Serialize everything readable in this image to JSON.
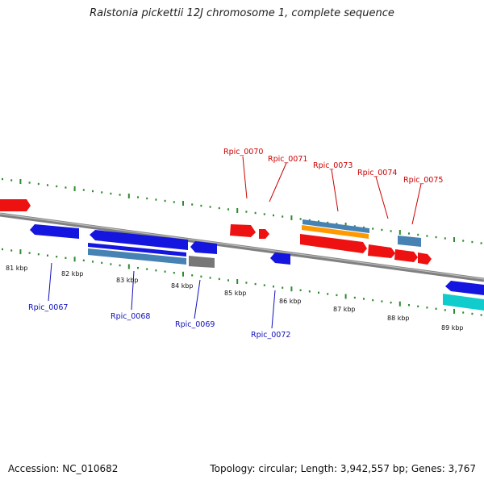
{
  "title": "Ralstonia pickettii 12J chromosome 1, complete sequence",
  "accession": "Accession: NC_010682",
  "summary": "Topology: circular; Length: 3,942,557 bp; Genes: 3,767",
  "colors": {
    "tick": "#2e8b2e",
    "backbone": "#808080",
    "forward_label": "#cc0000",
    "reverse_label": "#1010bb",
    "gene_red": "#ee1111",
    "gene_blue": "#1515e0",
    "gene_steel": "#4682b4",
    "gene_orange": "#ff9900",
    "gene_gray": "#777777",
    "gene_cyan": "#11cccc"
  },
  "kbp_labels": [
    "81 kbp",
    "82 kbp",
    "83 kbp",
    "84 kbp",
    "85 kbp",
    "86 kbp",
    "87 kbp",
    "88 kbp",
    "89 kbp"
  ],
  "forward_labels": [
    "Rpic_0070",
    "Rpic_0071",
    "Rpic_0073",
    "Rpic_0074",
    "Rpic_0075"
  ],
  "reverse_labels": [
    "Rpic_0067",
    "Rpic_0068",
    "Rpic_0069",
    "Rpic_0072"
  ]
}
